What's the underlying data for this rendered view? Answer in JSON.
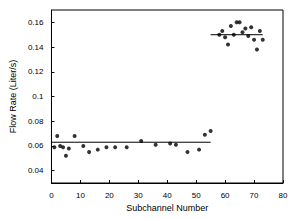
{
  "chart_data": {
    "type": "scatter",
    "x_label": "Subchannel Number",
    "y_label": "Flow Rate (Liter/s)",
    "xlim": [
      0,
      80
    ],
    "xticks": [
      0,
      10,
      20,
      30,
      40,
      50,
      60,
      70,
      80
    ],
    "ylim": [
      0.03,
      0.17
    ],
    "yticks": [
      0.04,
      0.06,
      0.08,
      0.1,
      0.12,
      0.14,
      0.16
    ],
    "grid": false,
    "series": [
      {
        "type": "scatter",
        "color": "#000000",
        "marker": "circle",
        "x": [
          1,
          2,
          3,
          4,
          5,
          6,
          8,
          11,
          13,
          16,
          19,
          22,
          26,
          31,
          36,
          41,
          43,
          47,
          51,
          53,
          55,
          58,
          59,
          60,
          61,
          62,
          63,
          64,
          65,
          66,
          67,
          68,
          69,
          70,
          71,
          72,
          73
        ],
        "values": [
          0.059,
          0.068,
          0.06,
          0.059,
          0.052,
          0.058,
          0.068,
          0.06,
          0.055,
          0.057,
          0.059,
          0.059,
          0.059,
          0.064,
          0.061,
          0.062,
          0.061,
          0.055,
          0.057,
          0.069,
          0.072,
          0.15,
          0.153,
          0.148,
          0.142,
          0.157,
          0.15,
          0.16,
          0.16,
          0.152,
          0.155,
          0.149,
          0.156,
          0.146,
          0.138,
          0.153,
          0.146
        ]
      },
      {
        "type": "line",
        "color": "#000000",
        "line_style": "solid",
        "x": [
          0,
          55
        ],
        "values": [
          0.063,
          0.063
        ]
      },
      {
        "type": "line",
        "color": "#000000",
        "line_style": "solid",
        "x": [
          55,
          73
        ],
        "values": [
          0.15,
          0.15
        ]
      }
    ]
  }
}
